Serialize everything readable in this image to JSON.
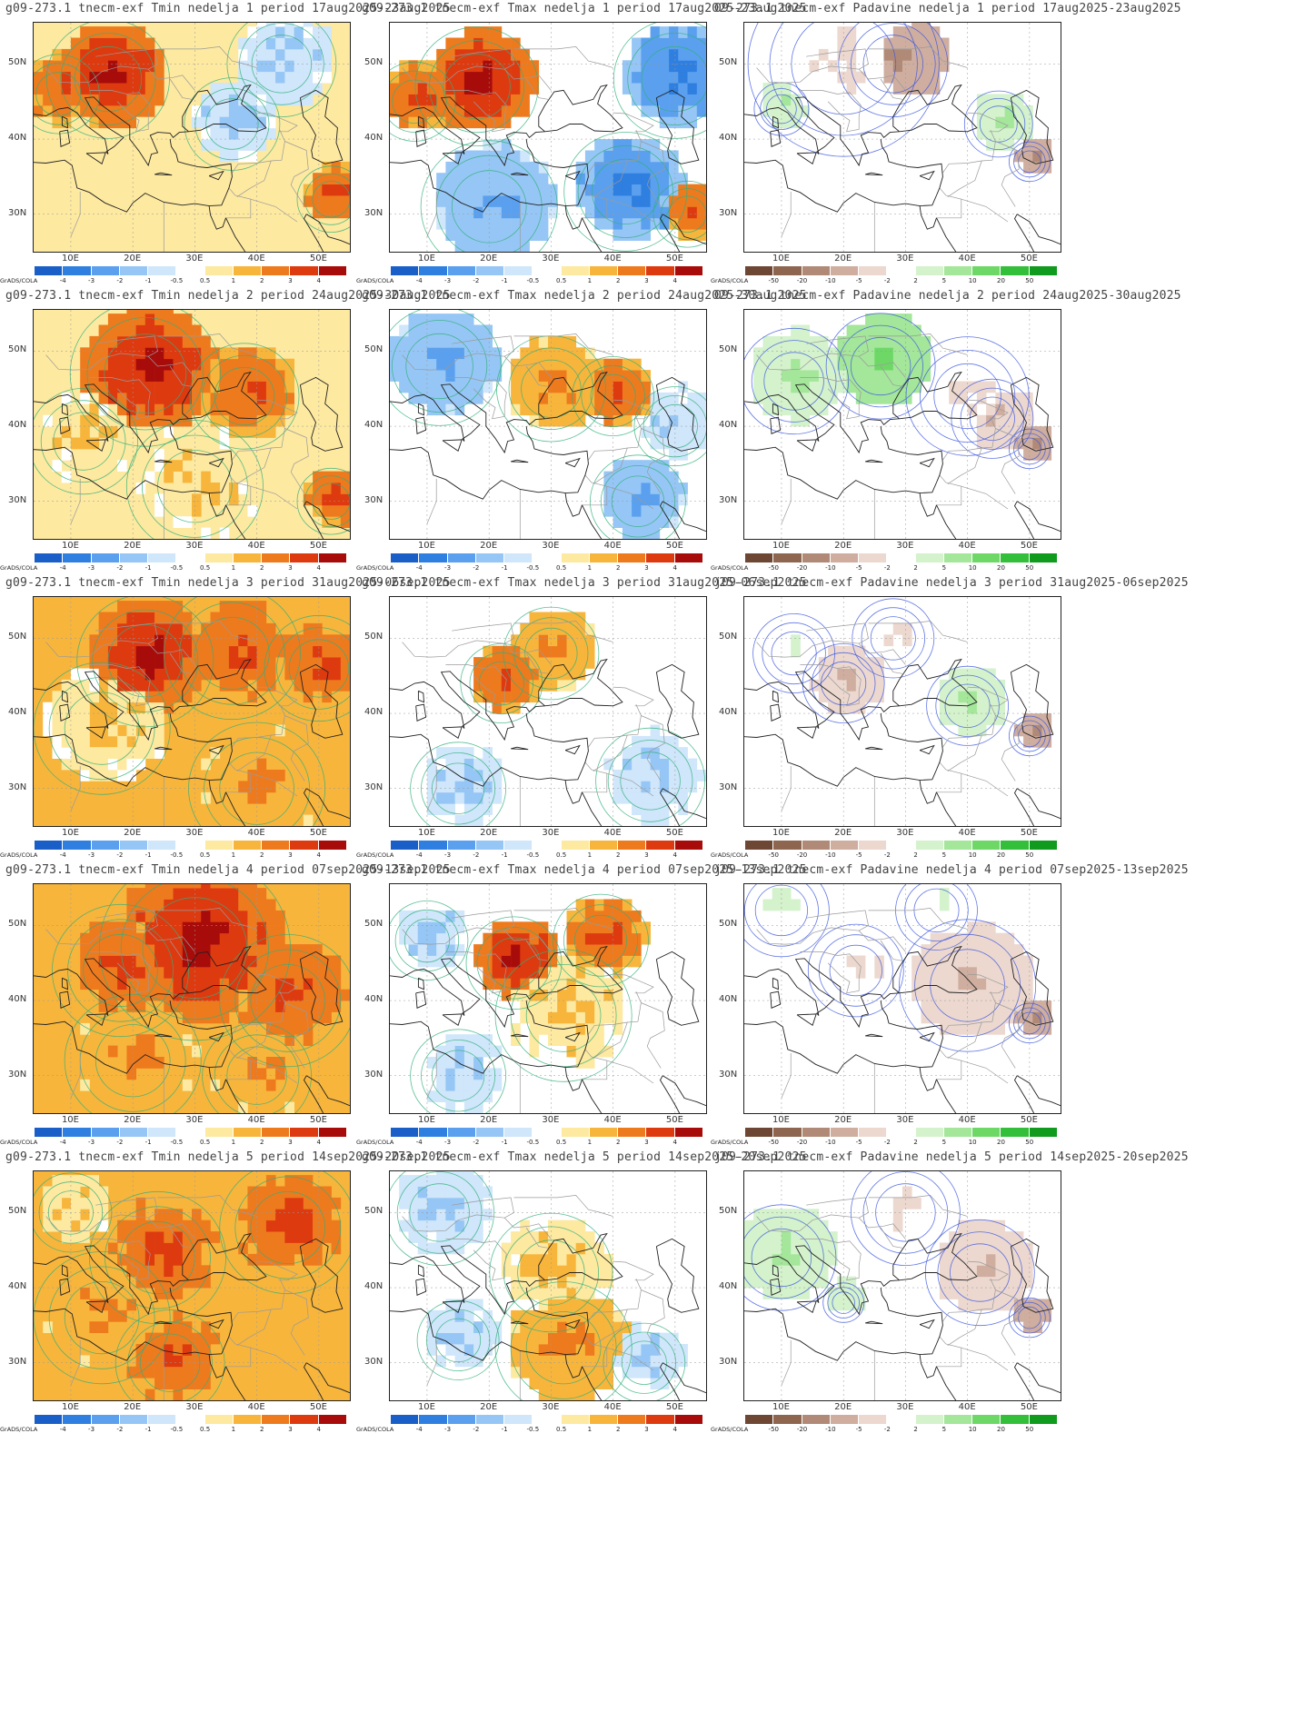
{
  "label_grads": "GrADS/COLA",
  "lat_labels": [
    "50N",
    "40N",
    "30N"
  ],
  "lon_labels": [
    "10E",
    "20E",
    "30E",
    "40E",
    "50E"
  ],
  "temp_scale": [
    "-4",
    "-3",
    "-2",
    "-1",
    "-0.5",
    "0.5",
    "1",
    "2",
    "3",
    "4"
  ],
  "precip_scale": [
    "-50",
    "-20",
    "-10",
    "-5",
    "-2",
    "2",
    "5",
    "10",
    "20",
    "50"
  ],
  "temp_colors": [
    "#1a5fc8",
    "#2f7fe0",
    "#5aa0ee",
    "#96c6f5",
    "#cfe6fb",
    "#ffffff",
    "#fde9a0",
    "#f7b53c",
    "#ee7a1e",
    "#de3a10",
    "#a70c0a"
  ],
  "precip_colors": [
    "#6e4734",
    "#8e6650",
    "#b08a77",
    "#cfaea0",
    "#ecd8cf",
    "#ffffff",
    "#d4f2cc",
    "#a4e69a",
    "#6ed867",
    "#33bf3a",
    "#109a1e"
  ],
  "rows": [
    {
      "week": "1",
      "tmin": "g09-273.1 tnecm-exf Tmin nedelja 1 period 17aug2025-23aug2025",
      "tmax": "g09-273.1 tnecm-exf Tmax nedelja 1 period 17aug2025-23aug2025",
      "prec": "09-273.1 tnecm-exf Padavine nedelja 1 period 17aug2025-23aug2025"
    },
    {
      "week": "2",
      "tmin": "g09-273.1 tnecm-exf Tmin nedelja 2 period 24aug2025-30aug2025",
      "tmax": "g09-273.1 tnecm-exf Tmax nedelja 2 period 24aug2025-30aug2025",
      "prec": "09-273.1 tnecm-exf Padavine nedelja 2 period 24aug2025-30aug2025"
    },
    {
      "week": "3",
      "tmin": "g09-273.1 tnecm-exf Tmin nedelja 3 period 31aug2025-06sep2025",
      "tmax": "g09-273.1 tnecm-exf Tmax nedelja 3 period 31aug2025-06sep2025",
      "prec": "j09-273.1 tnecm-exf Padavine nedelja 3 period 31aug2025-06sep2025"
    },
    {
      "week": "4",
      "tmin": "g09-273.1 tnecm-exf Tmin nedelja 4 period 07sep2025-13sep2025",
      "tmax": "g09-273.1 tnecm-exf Tmax nedelja 4 period 07sep2025-13sep2025",
      "prec": "j09-273.1 tnecm-exf Padavine nedelja 4 period 07sep2025-13sep2025"
    },
    {
      "week": "5",
      "tmin": "g09-273.1 tnecm-exf Tmin nedelja 5 period 14sep2025-20sep2025",
      "tmax": "g09-273.1 tnecm-exf Tmax nedelja 5 period 14sep2025-20sep2025",
      "prec": "j09-273.1 tnecm-exf Padavine nedelja 5 period 14sep2025-20sep2025"
    }
  ],
  "anomaly_fields": {
    "tmin": [
      [
        {
          "lon": 16,
          "lat": 48,
          "r": 9,
          "v": 4
        },
        {
          "lon": 8,
          "lat": 46,
          "r": 6,
          "v": 3
        },
        {
          "lon": 52,
          "lat": 32,
          "r": 5,
          "v": 3
        },
        {
          "lon": 36,
          "lat": 42,
          "r": 7,
          "v": -1
        },
        {
          "lon": 44,
          "lat": 50,
          "r": 8,
          "v": -1
        }
      ],
      [
        {
          "lon": 22,
          "lat": 47,
          "r": 11,
          "v": 4
        },
        {
          "lon": 38,
          "lat": 44,
          "r": 8,
          "v": 3
        },
        {
          "lon": 12,
          "lat": 38,
          "r": 8,
          "v": 1
        },
        {
          "lon": 52,
          "lat": 30,
          "r": 5,
          "v": 3
        },
        {
          "lon": 30,
          "lat": 32,
          "r": 10,
          "v": 1
        }
      ],
      [
        {
          "lon": 22,
          "lat": 47,
          "r": 10,
          "v": 4
        },
        {
          "lon": 36,
          "lat": 48,
          "r": 10,
          "v": 3
        },
        {
          "lon": 50,
          "lat": 46,
          "r": 8,
          "v": 3
        },
        {
          "lon": 15,
          "lat": 38,
          "r": 10,
          "v": 1
        },
        {
          "lon": 40,
          "lat": 30,
          "r": 10,
          "v": 2
        }
      ],
      [
        {
          "lon": 30,
          "lat": 47,
          "r": 14,
          "v": 4
        },
        {
          "lon": 18,
          "lat": 44,
          "r": 10,
          "v": 3
        },
        {
          "lon": 45,
          "lat": 40,
          "r": 10,
          "v": 3
        },
        {
          "lon": 20,
          "lat": 32,
          "r": 10,
          "v": 2
        },
        {
          "lon": 40,
          "lat": 30,
          "r": 8,
          "v": 2
        }
      ],
      [
        {
          "lon": 24,
          "lat": 44,
          "r": 10,
          "v": 3
        },
        {
          "lon": 45,
          "lat": 48,
          "r": 10,
          "v": 3
        },
        {
          "lon": 26,
          "lat": 30,
          "r": 8,
          "v": 3
        },
        {
          "lon": 15,
          "lat": 36,
          "r": 10,
          "v": 2
        },
        {
          "lon": 10,
          "lat": 50,
          "r": 6,
          "v": 1
        }
      ]
    ],
    "tmax": [
      [
        {
          "lon": 18,
          "lat": 47,
          "r": 9,
          "v": 4
        },
        {
          "lon": 8,
          "lat": 45,
          "r": 6,
          "v": 3
        },
        {
          "lon": 50,
          "lat": 48,
          "r": 9,
          "v": -3
        },
        {
          "lon": 42,
          "lat": 33,
          "r": 9,
          "v": -3
        },
        {
          "lon": 20,
          "lat": 31,
          "r": 10,
          "v": -2
        },
        {
          "lon": 52,
          "lat": 30,
          "r": 5,
          "v": 3
        }
      ],
      [
        {
          "lon": 12,
          "lat": 48,
          "r": 9,
          "v": -2
        },
        {
          "lon": 30,
          "lat": 45,
          "r": 8,
          "v": 2
        },
        {
          "lon": 40,
          "lat": 44,
          "r": 6,
          "v": 3
        },
        {
          "lon": 50,
          "lat": 40,
          "r": 6,
          "v": -1
        },
        {
          "lon": 44,
          "lat": 30,
          "r": 7,
          "v": -2
        }
      ],
      [
        {
          "lon": 22,
          "lat": 44,
          "r": 6,
          "v": 3
        },
        {
          "lon": 30,
          "lat": 48,
          "r": 7,
          "v": 2
        },
        {
          "lon": 46,
          "lat": 31,
          "r": 8,
          "v": -1
        },
        {
          "lon": 15,
          "lat": 30,
          "r": 7,
          "v": -1
        }
      ],
      [
        {
          "lon": 24,
          "lat": 45,
          "r": 7,
          "v": 4
        },
        {
          "lon": 38,
          "lat": 48,
          "r": 7,
          "v": 3
        },
        {
          "lon": 10,
          "lat": 48,
          "r": 6,
          "v": -1
        },
        {
          "lon": 32,
          "lat": 38,
          "r": 10,
          "v": 1
        },
        {
          "lon": 15,
          "lat": 30,
          "r": 7,
          "v": -1
        }
      ],
      [
        {
          "lon": 12,
          "lat": 50,
          "r": 8,
          "v": -1
        },
        {
          "lon": 32,
          "lat": 32,
          "r": 10,
          "v": 2
        },
        {
          "lon": 30,
          "lat": 42,
          "r": 9,
          "v": 1
        },
        {
          "lon": 45,
          "lat": 30,
          "r": 6,
          "v": -1
        },
        {
          "lon": 15,
          "lat": 33,
          "r": 6,
          "v": -1
        }
      ]
    ],
    "prec": [
      [
        {
          "lon": 20,
          "lat": 50,
          "r": 14,
          "v": -2
        },
        {
          "lon": 28,
          "lat": 50,
          "r": 8,
          "v": -10
        },
        {
          "lon": 10,
          "lat": 44,
          "r": 4,
          "v": 5
        },
        {
          "lon": 45,
          "lat": 42,
          "r": 5,
          "v": 5
        },
        {
          "lon": 50,
          "lat": 37,
          "r": 3,
          "v": -10
        }
      ],
      [
        {
          "lon": 26,
          "lat": 48,
          "r": 8,
          "v": 10
        },
        {
          "lon": 12,
          "lat": 46,
          "r": 8,
          "v": 5
        },
        {
          "lon": 44,
          "lat": 41,
          "r": 6,
          "v": -5
        },
        {
          "lon": 40,
          "lat": 44,
          "r": 9,
          "v": -2
        },
        {
          "lon": 50,
          "lat": 37,
          "r": 3,
          "v": -10
        }
      ],
      [
        {
          "lon": 20,
          "lat": 44,
          "r": 6,
          "v": -5
        },
        {
          "lon": 40,
          "lat": 41,
          "r": 6,
          "v": 5
        },
        {
          "lon": 12,
          "lat": 48,
          "r": 6,
          "v": 2
        },
        {
          "lon": 28,
          "lat": 50,
          "r": 6,
          "v": -2
        },
        {
          "lon": 50,
          "lat": 37,
          "r": 3,
          "v": -10
        }
      ],
      [
        {
          "lon": 40,
          "lat": 42,
          "r": 10,
          "v": -5
        },
        {
          "lon": 22,
          "lat": 44,
          "r": 7,
          "v": -2
        },
        {
          "lon": 10,
          "lat": 52,
          "r": 7,
          "v": 2
        },
        {
          "lon": 35,
          "lat": 52,
          "r": 6,
          "v": 2
        },
        {
          "lon": 50,
          "lat": 37,
          "r": 3,
          "v": -10
        }
      ],
      [
        {
          "lon": 10,
          "lat": 44,
          "r": 8,
          "v": 5
        },
        {
          "lon": 42,
          "lat": 42,
          "r": 8,
          "v": -5
        },
        {
          "lon": 30,
          "lat": 50,
          "r": 8,
          "v": -2
        },
        {
          "lon": 20,
          "lat": 38,
          "r": 3,
          "v": 5
        },
        {
          "lon": 50,
          "lat": 36,
          "r": 3,
          "v": -10
        }
      ]
    ]
  }
}
